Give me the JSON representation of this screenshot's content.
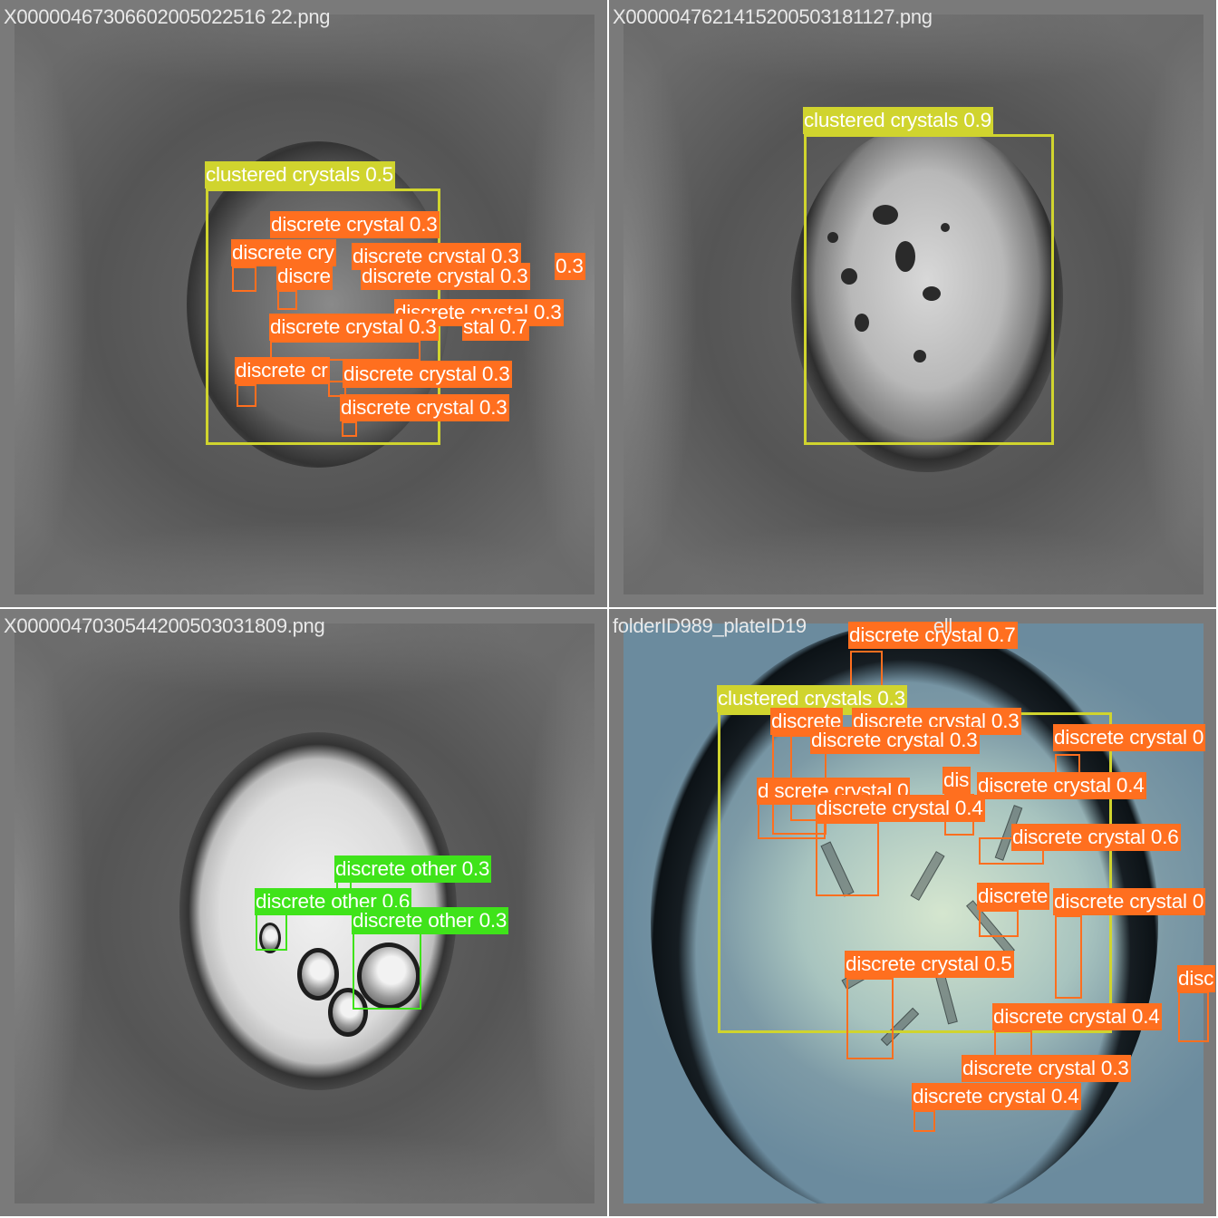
{
  "panels": [
    {
      "filename": "X00000467306602005022516 22.png",
      "annotations": [
        {
          "label": "clustered crystals 0.5"
        },
        {
          "label": "discrete crystal 0.3"
        },
        {
          "label": "discrete cry"
        },
        {
          "label": "discrete crystal 0.3"
        },
        {
          "label": "0.3"
        },
        {
          "label": "discre"
        },
        {
          "label": "discrete crystal 0.3"
        },
        {
          "label": "discrete crystal 0.3"
        },
        {
          "label": "discrete crystal 0.3"
        },
        {
          "label": "stal 0.7"
        },
        {
          "label": "discrete cr"
        },
        {
          "label": "discrete crystal 0.3"
        },
        {
          "label": "discrete crystal 0.3"
        }
      ]
    },
    {
      "filename": "X0000047621415200503181127.png",
      "annotations": [
        {
          "label": "clustered crystals 0.9"
        }
      ]
    },
    {
      "filename": "X0000047030544200503031809.png",
      "annotations": [
        {
          "label": "discrete other 0.3"
        },
        {
          "label": "discrete other 0.6"
        },
        {
          "label": "discrete other 0.3"
        }
      ]
    },
    {
      "filename": "folderID989_plateID19",
      "filename_tail": "ell",
      "annotations": [
        {
          "label": "discrete crystal 0.7"
        },
        {
          "label": "clustered crystals 0.3"
        },
        {
          "label": "discrete"
        },
        {
          "label": "discrete crystal 0.3"
        },
        {
          "label": "discrete crystal 0.3"
        },
        {
          "label": "discrete crystal 0"
        },
        {
          "label": "d screte crystal 0"
        },
        {
          "label": "dis"
        },
        {
          "label": "discrete crystal 0.4"
        },
        {
          "label": "discrete crystal 0.4"
        },
        {
          "label": "discrete crystal 0.6"
        },
        {
          "label": "discrete"
        },
        {
          "label": "discrete crystal 0"
        },
        {
          "label": "disc"
        },
        {
          "label": "discrete crystal 0.5"
        },
        {
          "label": "discrete crystal 0.4"
        },
        {
          "label": "discrete crystal 0.3"
        },
        {
          "label": "discrete crystal 0.4"
        }
      ]
    }
  ],
  "colors": {
    "discrete_crystal": "#ff6f1f",
    "clustered_crystals": "#d0d42e",
    "discrete_other": "#3fe31a"
  }
}
